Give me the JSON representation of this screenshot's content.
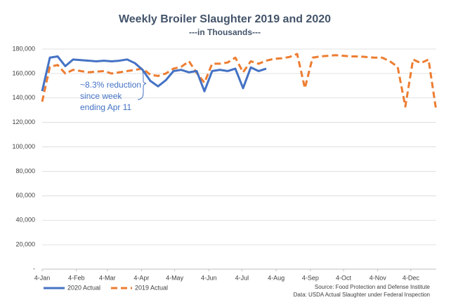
{
  "chart_data": {
    "type": "line",
    "title": "Weekly Broiler Slaughter 2019 and 2020",
    "subtitle": "---in Thousands---",
    "annotation": [
      "~8.3% reduction",
      "since week",
      "ending Apr 11"
    ],
    "source": [
      "Source: Food Protection and Defense Institute",
      "Data: USDA Actual Slaughter under Federal Inspection"
    ],
    "x": [
      0,
      7,
      14,
      21,
      28,
      35,
      42,
      49,
      56,
      63,
      70,
      77,
      84,
      91,
      98,
      105,
      112,
      119,
      126,
      133,
      140,
      147,
      154,
      161,
      168,
      175,
      182,
      189,
      196,
      203,
      210,
      217,
      224,
      231,
      238,
      245,
      252,
      259,
      266,
      273,
      280,
      287,
      294,
      301,
      308,
      315,
      322,
      329,
      336,
      343,
      350,
      357
    ],
    "xlim": [
      0,
      357
    ],
    "xticks": [
      {
        "value": 0,
        "label": "4-Jan"
      },
      {
        "value": 31,
        "label": "4-Feb"
      },
      {
        "value": 59,
        "label": "4-Mar"
      },
      {
        "value": 90,
        "label": "4-Apr"
      },
      {
        "value": 120,
        "label": "4-May"
      },
      {
        "value": 151,
        "label": "4-Jun"
      },
      {
        "value": 181,
        "label": "4-Jul"
      },
      {
        "value": 212,
        "label": "4-Aug"
      },
      {
        "value": 243,
        "label": "4-Sep"
      },
      {
        "value": 273,
        "label": "4-Oct"
      },
      {
        "value": 304,
        "label": "4-Nov"
      },
      {
        "value": 334,
        "label": "4-Dec"
      }
    ],
    "ylim": [
      0,
      180000
    ],
    "yticks": [
      {
        "value": 0,
        "label": "-"
      },
      {
        "value": 20000,
        "label": "20,000"
      },
      {
        "value": 40000,
        "label": "40,000"
      },
      {
        "value": 60000,
        "label": "60,000"
      },
      {
        "value": 80000,
        "label": "80,000"
      },
      {
        "value": 100000,
        "label": "100,000"
      },
      {
        "value": 120000,
        "label": "120,000"
      },
      {
        "value": 140000,
        "label": "140,000"
      },
      {
        "value": 160000,
        "label": "160,000"
      },
      {
        "value": 180000,
        "label": "180,000"
      }
    ],
    "grid": true,
    "legend": "bottom-left",
    "series": [
      {
        "name": "2020 Actual",
        "color": "#4472c4",
        "dashed": false,
        "values": [
          145600,
          173000,
          174000,
          166000,
          171500,
          171000,
          170500,
          170000,
          170500,
          170000,
          170500,
          171500,
          168500,
          163000,
          154000,
          149500,
          154500,
          162000,
          163000,
          161000,
          162000,
          145500,
          162000,
          163000,
          162000,
          164000,
          148000,
          165000,
          162000,
          164000,
          null,
          null,
          null,
          null,
          null,
          null,
          null,
          null,
          null,
          null,
          null,
          null,
          null,
          null,
          null,
          null,
          null,
          null,
          null,
          null,
          null,
          null
        ]
      },
      {
        "name": "2019 Actual",
        "color": "#ed7d31",
        "dashed": true,
        "values": [
          137000,
          165500,
          167000,
          160000,
          163000,
          162000,
          161000,
          161500,
          162000,
          160000,
          161000,
          162000,
          163000,
          164000,
          159000,
          158000,
          160000,
          164000,
          165500,
          170000,
          160500,
          152500,
          168000,
          168000,
          169000,
          173000,
          161000,
          170000,
          168000,
          170500,
          172000,
          172500,
          173500,
          176000,
          148000,
          173000,
          174000,
          174500,
          175000,
          174500,
          174000,
          174000,
          173500,
          173000,
          173000,
          170000,
          165500,
          133000,
          171500,
          168500,
          171500,
          129500
        ]
      }
    ]
  }
}
